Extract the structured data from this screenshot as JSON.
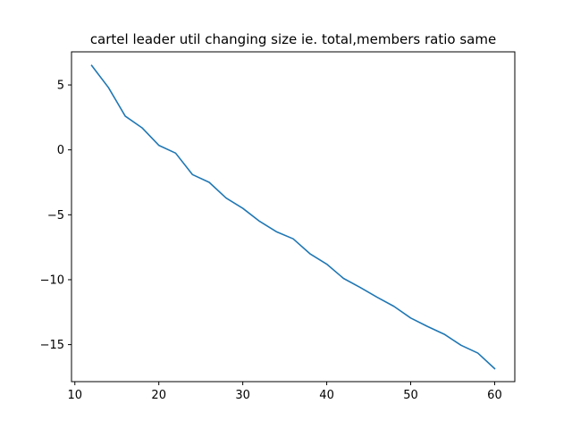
{
  "chart_data": {
    "type": "line",
    "title": "cartel leader util changing size ie. total,members ratio same",
    "xlabel": "",
    "ylabel": "",
    "xlim": [
      9.6,
      62.4
    ],
    "ylim": [
      -17.85,
      7.55
    ],
    "x_ticks": [
      10,
      20,
      30,
      40,
      50,
      60
    ],
    "y_ticks": [
      5,
      0,
      -5,
      -10,
      -15
    ],
    "x_tick_labels": [
      "10",
      "20",
      "30",
      "40",
      "50",
      "60"
    ],
    "y_tick_labels": [
      "5",
      "0",
      "−5",
      "−10",
      "−15"
    ],
    "grid": false,
    "legend": "none",
    "series": [
      {
        "color": "#1f77b4",
        "x": [
          12,
          14,
          16,
          18,
          20,
          22,
          24,
          26,
          28,
          30,
          32,
          34,
          36,
          38,
          40,
          42,
          44,
          46,
          48,
          50,
          52,
          54,
          56,
          58,
          60
        ],
        "y": [
          6.5,
          4.8,
          2.6,
          1.7,
          0.35,
          -0.25,
          -1.9,
          -2.5,
          -3.7,
          -4.5,
          -5.5,
          -6.3,
          -6.85,
          -8.0,
          -8.8,
          -9.9,
          -10.6,
          -11.35,
          -12.05,
          -12.95,
          -13.6,
          -14.2,
          -15.05,
          -15.65,
          -16.85
        ]
      }
    ]
  }
}
